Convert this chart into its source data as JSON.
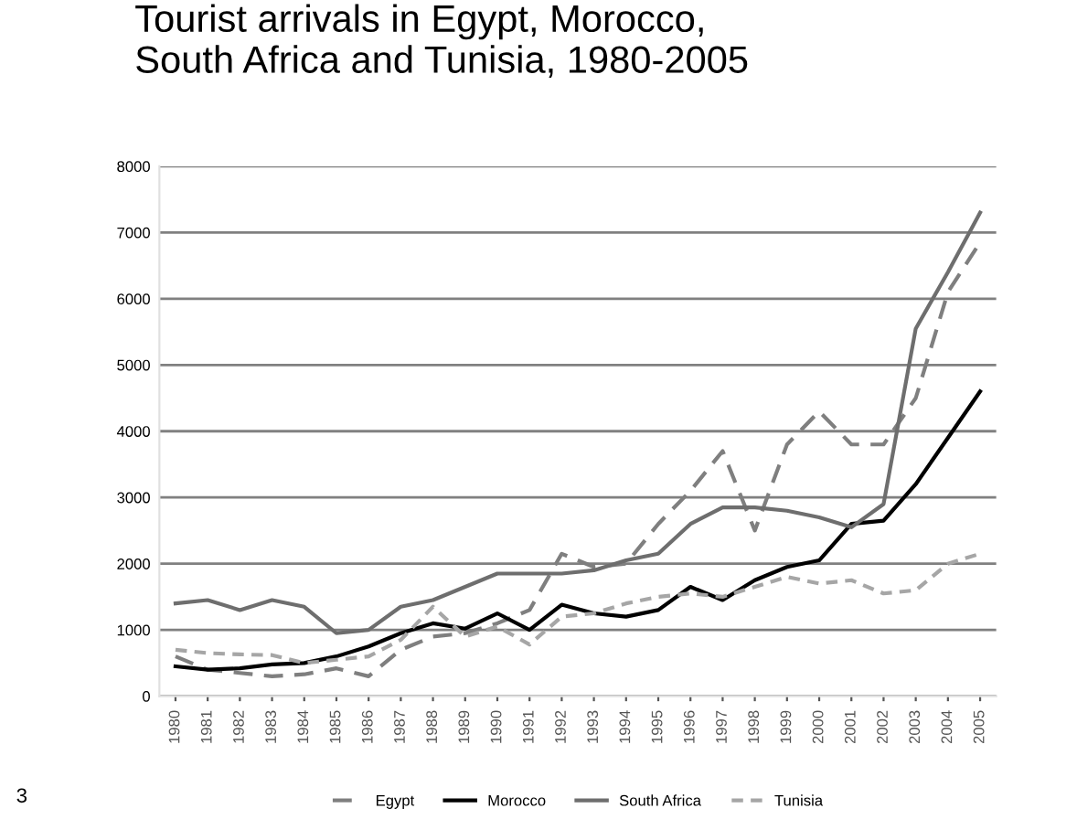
{
  "chart_data": {
    "type": "line",
    "title": "Tourist arrivals in Egypt, Morocco,\nSouth Africa and Tunisia, 1980-2005",
    "categories": [
      "1980",
      "1981",
      "1982",
      "1983",
      "1984",
      "1985",
      "1986",
      "1987",
      "1988",
      "1989",
      "1990",
      "1991",
      "1992",
      "1993",
      "1994",
      "1995",
      "1996",
      "1997",
      "1998",
      "1999",
      "2000",
      "2001",
      "2002",
      "2003",
      "2004",
      "2005"
    ],
    "series": [
      {
        "name": "Egypt",
        "color": "#7f7f7f",
        "line_style": "dashed",
        "values": [
          600,
          400,
          350,
          300,
          330,
          420,
          300,
          700,
          900,
          950,
          1100,
          1300,
          2150,
          1950,
          2000,
          2600,
          3100,
          3700,
          2500,
          3800,
          4300,
          3800,
          3800,
          4500,
          6100,
          6850
        ]
      },
      {
        "name": "Morocco",
        "color": "#000000",
        "line_style": "solid",
        "values": [
          450,
          400,
          420,
          480,
          500,
          600,
          750,
          950,
          1100,
          1020,
          1250,
          1000,
          1380,
          1250,
          1200,
          1300,
          1650,
          1450,
          1750,
          1950,
          2050,
          2600,
          2650,
          3200,
          3900,
          4600
        ]
      },
      {
        "name": "South Africa",
        "color": "#6e6e6e",
        "line_style": "solid",
        "values": [
          1400,
          1450,
          1300,
          1450,
          1350,
          950,
          1000,
          1350,
          1450,
          1650,
          1850,
          1850,
          1850,
          1900,
          2050,
          2150,
          2600,
          2850,
          2850,
          2800,
          2700,
          2550,
          2900,
          5550,
          6400,
          7300
        ]
      },
      {
        "name": "Tunisia",
        "color": "#a6a6a6",
        "line_style": "dotted",
        "values": [
          700,
          650,
          630,
          620,
          500,
          550,
          600,
          850,
          1350,
          900,
          1050,
          780,
          1200,
          1250,
          1400,
          1500,
          1550,
          1500,
          1650,
          1800,
          1700,
          1750,
          1550,
          1600,
          2000,
          2150
        ]
      }
    ],
    "ylim": [
      0,
      8000
    ],
    "yticks": [
      0,
      1000,
      2000,
      3000,
      4000,
      5000,
      6000,
      7000,
      8000
    ],
    "grid": "y",
    "legend": "bottom",
    "annotations": [
      "3"
    ]
  }
}
